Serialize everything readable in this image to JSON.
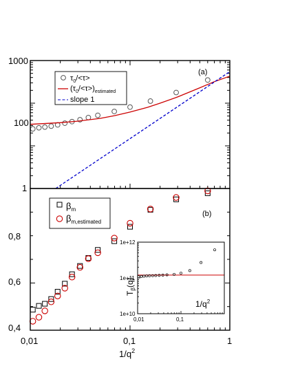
{
  "chart_data": [
    {
      "type": "scatter",
      "panel_label": "(a)",
      "xscale": "log",
      "yscale": "log",
      "xlim": [
        0.01,
        1
      ],
      "ylim": [
        1,
        1000
      ],
      "y_tick_labels": [
        "1",
        "100",
        "1000"
      ],
      "legend_position": "top-left",
      "series": [
        {
          "name": "τ0/<τ>",
          "legend": {
            "base": "τ",
            "sub": "0",
            "rest": "/<τ>",
            "sub2": ""
          },
          "kind": "markers",
          "marker": "circle",
          "color": "#555555",
          "x": [
            0.0106,
            0.0122,
            0.014,
            0.0162,
            0.0188,
            0.0222,
            0.0262,
            0.0315,
            0.0382,
            0.0475,
            0.0695,
            0.1,
            0.16,
            0.29,
            0.6
          ],
          "y": [
            25,
            26.5,
            27.5,
            29,
            31,
            34,
            37,
            41,
            46,
            52,
            64,
            81,
            112,
            178,
            350
          ]
        },
        {
          "name": "(τ0/<τ>)estimated",
          "legend": {
            "base": "(τ",
            "sub": "0",
            "rest": "/<τ>)",
            "sub2": "estimated"
          },
          "kind": "line",
          "color": "#cc0000",
          "x": [
            0.01,
            0.02,
            0.03,
            0.05,
            0.07,
            0.1,
            0.15,
            0.2,
            0.3,
            0.5,
            0.7,
            1.0
          ],
          "y": [
            32,
            35,
            38,
            44,
            51,
            62,
            80,
            100,
            140,
            230,
            320,
            430
          ]
        },
        {
          "name": "slope 1",
          "legend": {
            "base": "slope 1",
            "sub": "",
            "rest": "",
            "sub2": ""
          },
          "kind": "dashed",
          "color": "#0000cc",
          "x": [
            0.018,
            1.0
          ],
          "y": [
            1,
            550
          ]
        }
      ]
    },
    {
      "type": "scatter",
      "panel_label": "(b)",
      "xscale": "log",
      "yscale": "linear",
      "xlim": [
        0.01,
        1
      ],
      "ylim": [
        0.4,
        1.0
      ],
      "x_tick_labels": [
        "0,01",
        "0,1",
        "1"
      ],
      "y_tick_labels": [
        "0,4",
        "0,6",
        "0,8"
      ],
      "xlabel": {
        "base": "1/q",
        "sup": "2"
      },
      "legend_position": "top-left",
      "series": [
        {
          "name": "βm",
          "legend": {
            "base": "β",
            "sub": "m"
          },
          "marker": "square",
          "color": "#000000",
          "x": [
            0.0106,
            0.0122,
            0.014,
            0.0162,
            0.0188,
            0.0222,
            0.0262,
            0.0315,
            0.0382,
            0.0475,
            0.0695,
            0.1,
            0.16,
            0.29,
            0.6
          ],
          "y": [
            0.487,
            0.503,
            0.512,
            0.532,
            0.563,
            0.597,
            0.637,
            0.672,
            0.706,
            0.74,
            0.777,
            0.838,
            0.91,
            0.954,
            0.98
          ]
        },
        {
          "name": "βm,estimated",
          "legend": {
            "base": "β",
            "sub": "m,estimated"
          },
          "marker": "circle",
          "color": "#cc0000",
          "x": [
            0.0106,
            0.0122,
            0.014,
            0.0162,
            0.0188,
            0.0222,
            0.0262,
            0.0315,
            0.0382,
            0.0475,
            0.0695,
            0.1,
            0.16,
            0.29,
            0.6
          ],
          "y": [
            0.438,
            0.455,
            0.482,
            0.52,
            0.545,
            0.578,
            0.625,
            0.666,
            0.703,
            0.728,
            0.79,
            0.853,
            0.913,
            0.962,
            0.99
          ]
        }
      ]
    },
    {
      "type": "scatter",
      "role": "inset",
      "xscale": "log",
      "yscale": "log",
      "xlim": [
        0.01,
        1
      ],
      "ylim": [
        10000000000.0,
        1000000000000.0
      ],
      "x_tick_labels": [
        "0,01",
        "0,1"
      ],
      "y_tick_labels": [
        "1e+12",
        "1e+11",
        "1e+10"
      ],
      "ylabel": {
        "base": "T",
        "sub": "β",
        "rest": "(q)"
      },
      "xlabel": {
        "base": "1/q",
        "sup": "2"
      },
      "reference_line": {
        "y": 120000000000.0,
        "color": "#cc0000"
      },
      "series": [
        {
          "marker": "circle",
          "color": "#000000",
          "x": [
            0.0106,
            0.0122,
            0.014,
            0.0162,
            0.0188,
            0.0222,
            0.0262,
            0.0315,
            0.0382,
            0.0475,
            0.0695,
            0.1,
            0.16,
            0.29,
            0.6
          ],
          "y": [
            108000000000.0,
            110000000000.0,
            112000000000.0,
            114000000000.0,
            115000000000.0,
            116000000000.0,
            117000000000.0,
            118000000000.0,
            120000000000.0,
            122000000000.0,
            126000000000.0,
            136000000000.0,
            160000000000.0,
            270000000000.0,
            610000000000.0
          ]
        }
      ]
    }
  ]
}
